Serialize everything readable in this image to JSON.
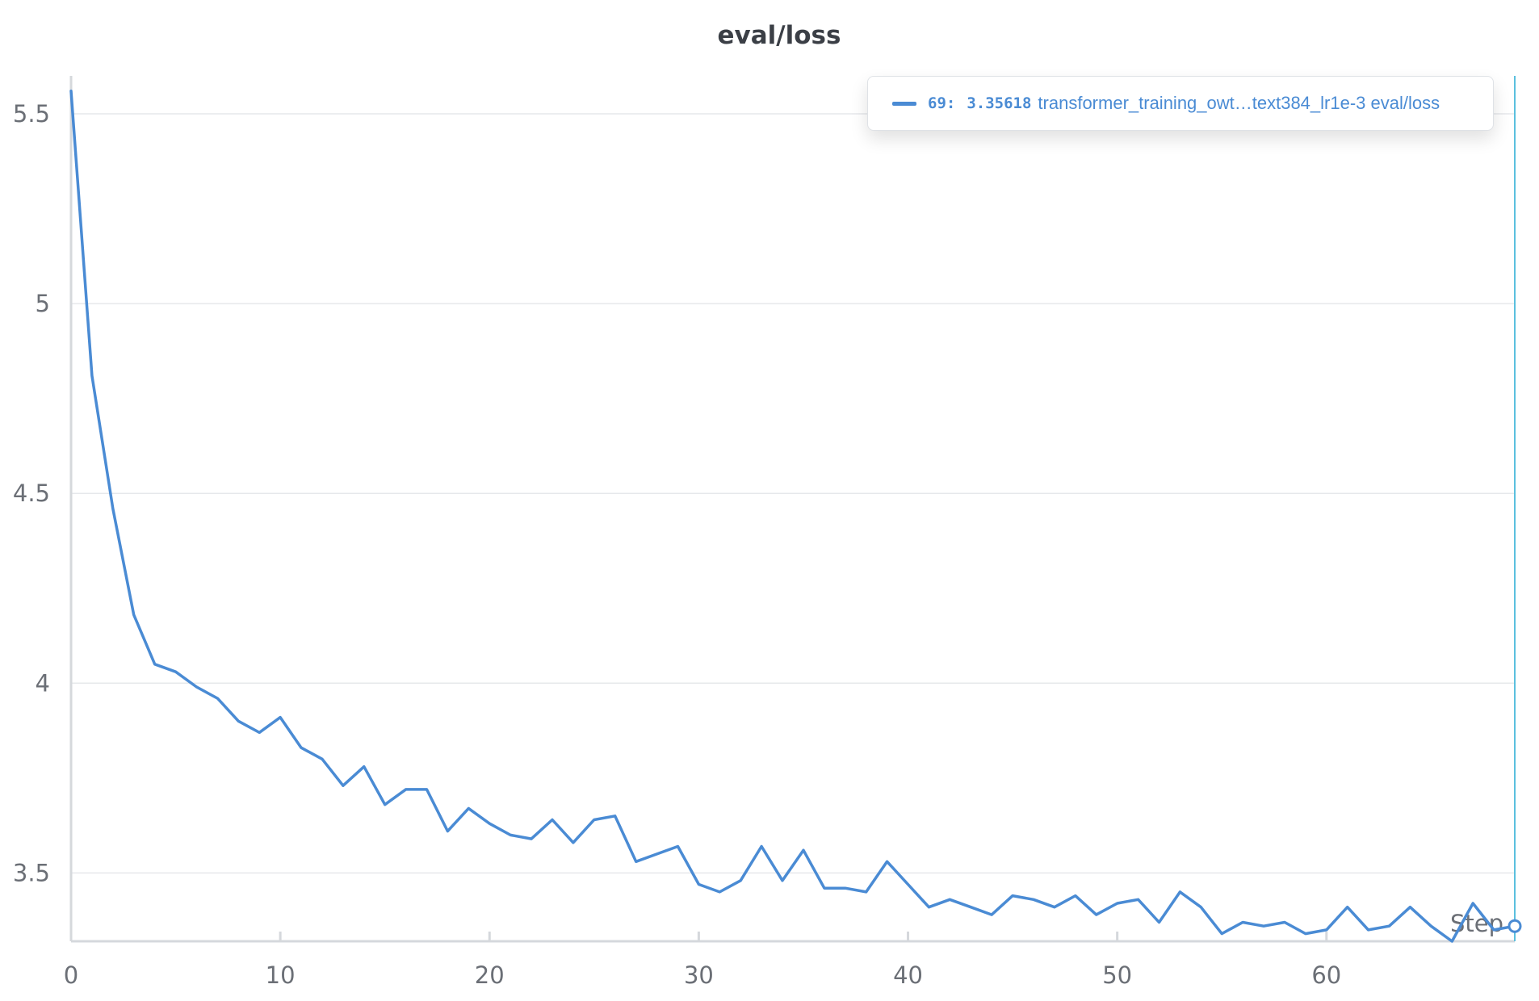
{
  "colors": {
    "series": "#4a8bd4",
    "cursor": "#5bc0de",
    "grid": "#e6e8eb",
    "text": "#6b6f76",
    "title": "#3b3f46"
  },
  "legend": {
    "step": "69",
    "separator": ":",
    "value": "3.35618",
    "run_name": "transformer_training_owt…text384_lr1e-3 eval/loss"
  },
  "chart_data": {
    "type": "line",
    "title": "eval/loss",
    "xlabel": "Step",
    "ylabel": "",
    "xlim": [
      0,
      69
    ],
    "ylim": [
      3.32,
      5.6
    ],
    "grid": true,
    "legend_position": "top-right",
    "x_ticks": [
      0,
      10,
      20,
      30,
      40,
      50,
      60
    ],
    "y_ticks": [
      3.5,
      4,
      4.5,
      5,
      5.5
    ],
    "y_tick_labels": [
      "3.5",
      "4",
      "4.5",
      "5",
      "5.5"
    ],
    "cursor_x": 69,
    "series": [
      {
        "name": "transformer_training_owt…text384_lr1e-3 eval/loss",
        "x": [
          0,
          1,
          2,
          3,
          4,
          5,
          6,
          7,
          8,
          9,
          10,
          11,
          12,
          13,
          14,
          15,
          16,
          17,
          18,
          19,
          20,
          21,
          22,
          23,
          24,
          25,
          26,
          27,
          28,
          29,
          30,
          31,
          32,
          33,
          34,
          35,
          36,
          37,
          38,
          39,
          40,
          41,
          42,
          43,
          44,
          45,
          46,
          47,
          48,
          49,
          50,
          51,
          52,
          53,
          54,
          55,
          56,
          57,
          58,
          59,
          60,
          61,
          62,
          63,
          64,
          65,
          66,
          67,
          68,
          69
        ],
        "values": [
          5.56,
          4.81,
          4.46,
          4.18,
          4.05,
          4.03,
          3.99,
          3.96,
          3.9,
          3.87,
          3.91,
          3.83,
          3.8,
          3.73,
          3.78,
          3.68,
          3.72,
          3.72,
          3.61,
          3.67,
          3.63,
          3.6,
          3.59,
          3.64,
          3.58,
          3.64,
          3.65,
          3.53,
          3.55,
          3.57,
          3.47,
          3.45,
          3.48,
          3.57,
          3.48,
          3.56,
          3.46,
          3.46,
          3.45,
          3.53,
          3.47,
          3.41,
          3.43,
          3.41,
          3.39,
          3.44,
          3.43,
          3.41,
          3.44,
          3.39,
          3.42,
          3.43,
          3.37,
          3.45,
          3.41,
          3.34,
          3.37,
          3.36,
          3.37,
          3.34,
          3.35,
          3.41,
          3.35,
          3.36,
          3.41,
          3.36,
          3.32,
          3.42,
          3.35,
          3.36
        ]
      }
    ]
  }
}
